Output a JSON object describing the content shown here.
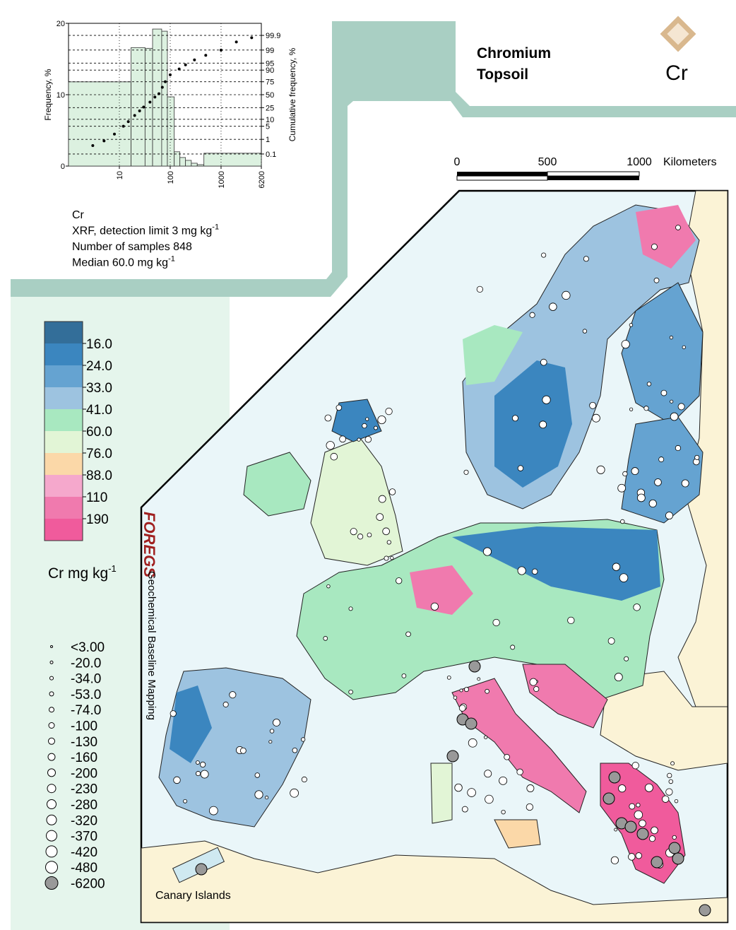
{
  "title": {
    "element": "Chromium",
    "medium": "Topsoil",
    "symbol": "Cr"
  },
  "histogram": {
    "type": "histogram",
    "bins": [
      1,
      17,
      32,
      45,
      68,
      88,
      120,
      155,
      200,
      260,
      340,
      460,
      6200
    ],
    "counts": [
      11.8,
      16.6,
      16.5,
      19.2,
      18.9,
      9.7,
      2.0,
      1.2,
      0.8,
      0.4,
      0.2,
      1.8
    ],
    "color": "#dcf1e0",
    "log_x": true,
    "xlim": [
      1,
      6200
    ],
    "xticks": [
      10,
      100,
      1000,
      6200
    ],
    "ylim": [
      0,
      20
    ],
    "yticks": [
      0,
      10,
      20
    ],
    "ylabel": "Frequency, %",
    "y2label": "Cumulative frequency, %",
    "y2lim": [
      0.01,
      99.99
    ],
    "y2ticks": [
      0.1,
      1,
      5,
      10,
      25,
      50,
      75,
      90,
      95,
      99,
      99.9
    ],
    "cumulative": {
      "axis": "y2",
      "color": "#000000",
      "x": [
        3,
        5,
        8,
        12,
        15,
        20,
        25,
        30,
        40,
        50,
        60,
        70,
        80,
        100,
        150,
        200,
        300,
        500,
        1000,
        2000,
        4000
      ],
      "values": [
        0.4,
        0.8,
        2,
        5,
        8,
        14,
        20,
        26,
        35,
        45,
        52,
        65,
        75,
        85,
        91,
        94,
        96.5,
        98,
        99,
        99.7,
        99.85
      ]
    }
  },
  "info": [
    {
      "text": "Cr"
    },
    {
      "text": "XRF, detection limit 3 mg kg",
      "sup": "-1"
    },
    {
      "text": "Number of samples 848"
    },
    {
      "text": "Median 60.0 mg kg",
      "sup": "-1"
    }
  ],
  "scale_bar": {
    "ticks": [
      0,
      500,
      1000
    ],
    "unit": "Kilometers"
  },
  "color_legend": {
    "colors": [
      "#336e99",
      "#3b86bf",
      "#65a3d1",
      "#9dc3e0",
      "#a8e8c0",
      "#e2f5d6",
      "#fbd8a8",
      "#f5a8cc",
      "#f07aae",
      "#f05b9c"
    ],
    "labels": [
      "16.0",
      "24.0",
      "33.0",
      "41.0",
      "60.0",
      "76.0",
      "88.0",
      "110",
      "190"
    ],
    "title": "Cr mg kg",
    "title_sup": "-1"
  },
  "size_legend": {
    "labels": [
      "<3.00",
      "-20.0",
      "-34.0",
      "-53.0",
      "-74.0",
      "-100",
      "-130",
      "-160",
      "-200",
      "-230",
      "-280",
      "-320",
      "-370",
      "-420",
      "-480",
      "-6200"
    ]
  },
  "brand": {
    "logo": "FOREGS",
    "caption": "Geochemical Baseline Mapping"
  },
  "inset_label": "Canary Islands"
}
